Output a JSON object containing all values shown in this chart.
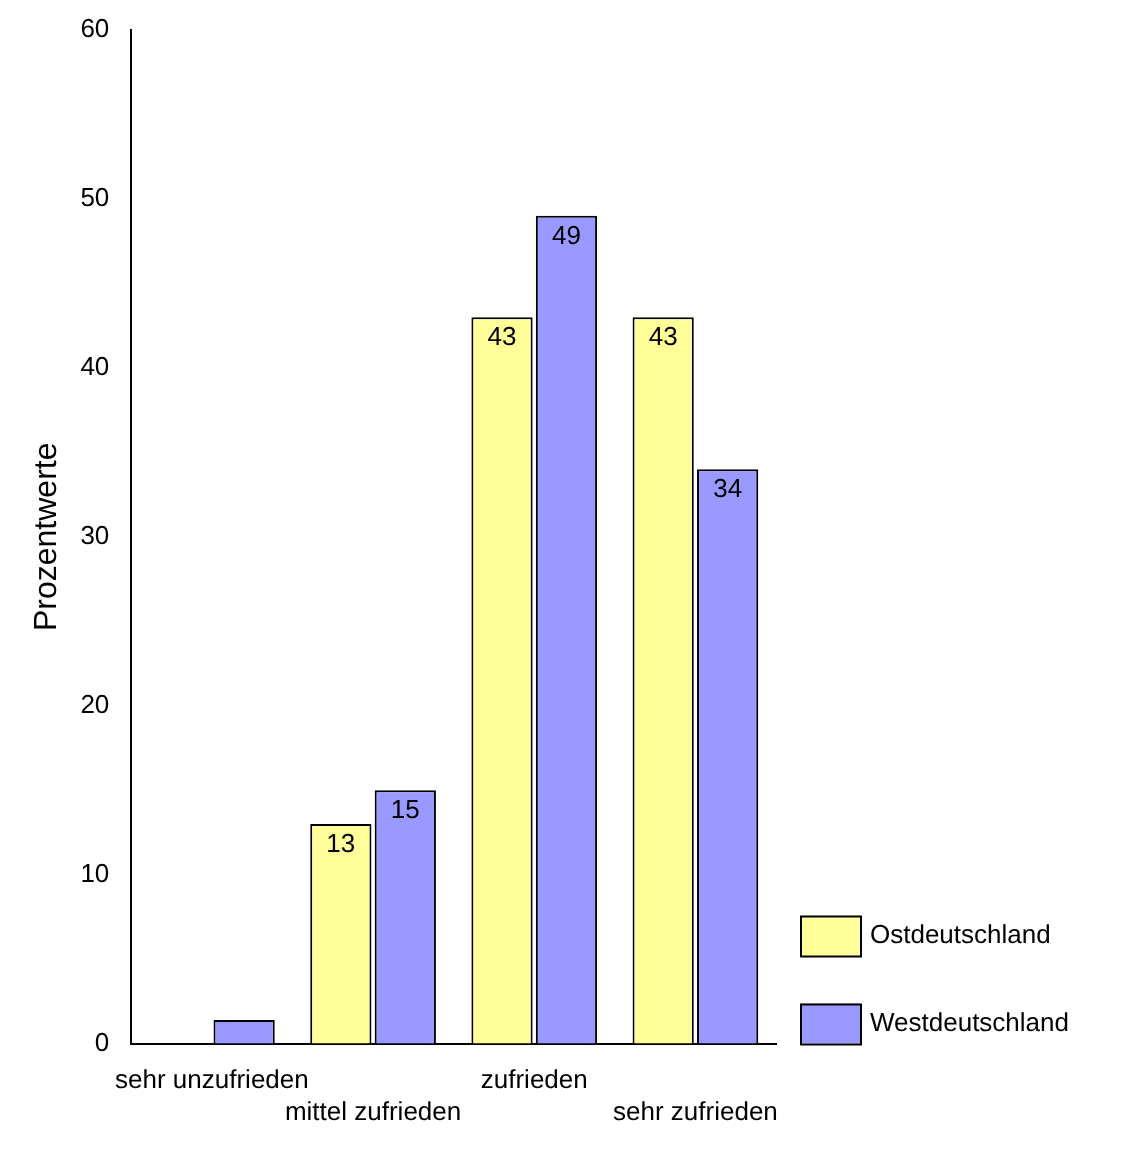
{
  "chart_data": {
    "type": "bar",
    "ylabel": "Prozentwerte",
    "categories": [
      "sehr unzufrieden",
      "mittel zufrieden",
      "zufrieden",
      "sehr zufrieden"
    ],
    "series": [
      {
        "name": "Ostdeutschland",
        "color": "#ffff99",
        "values": [
          0,
          13,
          43,
          43
        ],
        "value_labels": [
          null,
          "13",
          "43",
          "43"
        ]
      },
      {
        "name": "Westdeutschland",
        "color": "#9999ff",
        "values": [
          1.4,
          15,
          49,
          34
        ],
        "value_labels": [
          null,
          "15",
          "49",
          "34"
        ]
      }
    ],
    "ylim": [
      0,
      60
    ],
    "yticks": [
      0,
      10,
      20,
      30,
      40,
      50,
      60
    ],
    "grid": false,
    "legend": "bottom right"
  }
}
